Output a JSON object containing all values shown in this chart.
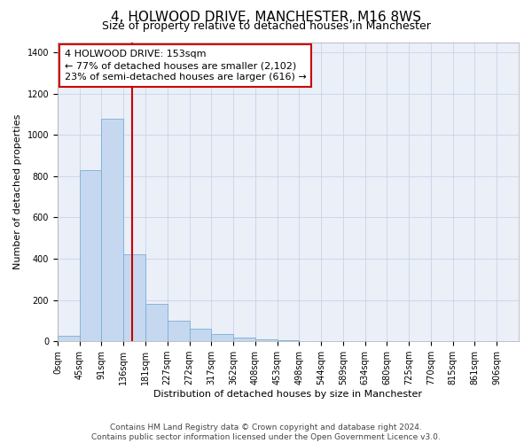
{
  "title": "4, HOLWOOD DRIVE, MANCHESTER, M16 8WS",
  "subtitle": "Size of property relative to detached houses in Manchester",
  "xlabel": "Distribution of detached houses by size in Manchester",
  "ylabel": "Number of detached properties",
  "footnote": "Contains HM Land Registry data © Crown copyright and database right 2024.\nContains public sector information licensed under the Open Government Licence v3.0.",
  "bar_labels": [
    "0sqm",
    "45sqm",
    "91sqm",
    "136sqm",
    "181sqm",
    "227sqm",
    "272sqm",
    "317sqm",
    "362sqm",
    "408sqm",
    "453sqm",
    "498sqm",
    "544sqm",
    "589sqm",
    "634sqm",
    "680sqm",
    "725sqm",
    "770sqm",
    "815sqm",
    "861sqm",
    "906sqm"
  ],
  "bar_values": [
    25,
    830,
    1080,
    420,
    180,
    100,
    60,
    35,
    20,
    10,
    5,
    3,
    2,
    0,
    0,
    0,
    0,
    0,
    0,
    0,
    0
  ],
  "bar_color": "#c5d8f0",
  "bar_edge_color": "#7aaed6",
  "vline_color": "#cc0000",
  "vline_pos": 3.4,
  "annotation_text": "4 HOLWOOD DRIVE: 153sqm\n← 77% of detached houses are smaller (2,102)\n23% of semi-detached houses are larger (616) →",
  "annotation_box_color": "#cc0000",
  "ylim": [
    0,
    1450
  ],
  "yticks": [
    0,
    200,
    400,
    600,
    800,
    1000,
    1200,
    1400
  ],
  "grid_color": "#c8d4e8",
  "bg_color": "#eaeff8",
  "title_fontsize": 11,
  "subtitle_fontsize": 9,
  "label_fontsize": 8,
  "tick_fontsize": 7,
  "annotation_fontsize": 8,
  "footnote_fontsize": 6.5
}
